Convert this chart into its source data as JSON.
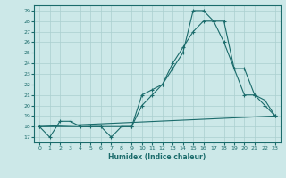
{
  "xlabel": "Humidex (Indice chaleur)",
  "bg_color": "#cce8e8",
  "line_color": "#1a6b6b",
  "grid_color": "#aacfcf",
  "xlim": [
    -0.5,
    23.5
  ],
  "ylim": [
    16.5,
    29.5
  ],
  "yticks": [
    17,
    18,
    19,
    20,
    21,
    22,
    23,
    24,
    25,
    26,
    27,
    28,
    29
  ],
  "xticks": [
    0,
    1,
    2,
    3,
    4,
    5,
    6,
    7,
    8,
    9,
    10,
    11,
    12,
    13,
    14,
    15,
    16,
    17,
    18,
    19,
    20,
    21,
    22,
    23
  ],
  "series1_x": [
    0,
    1,
    2,
    3,
    4,
    5,
    6,
    7,
    8,
    9,
    10,
    11,
    12,
    13,
    14,
    15,
    16,
    17,
    18,
    19,
    20,
    21,
    22,
    23
  ],
  "series1_y": [
    18,
    17,
    18.5,
    18.5,
    18,
    18,
    18,
    17,
    18,
    18,
    20,
    21,
    22,
    23.5,
    25,
    29,
    29,
    28,
    26,
    23.5,
    21,
    21,
    20,
    19
  ],
  "series2_x": [
    0,
    23
  ],
  "series2_y": [
    18,
    19
  ],
  "series3_x": [
    0,
    9,
    10,
    11,
    12,
    13,
    14,
    15,
    16,
    17,
    18,
    19,
    20,
    21,
    22,
    23
  ],
  "series3_y": [
    18,
    18,
    21,
    21.5,
    22,
    24,
    25.5,
    27,
    28,
    28,
    28,
    23.5,
    23.5,
    21,
    20.5,
    19
  ]
}
